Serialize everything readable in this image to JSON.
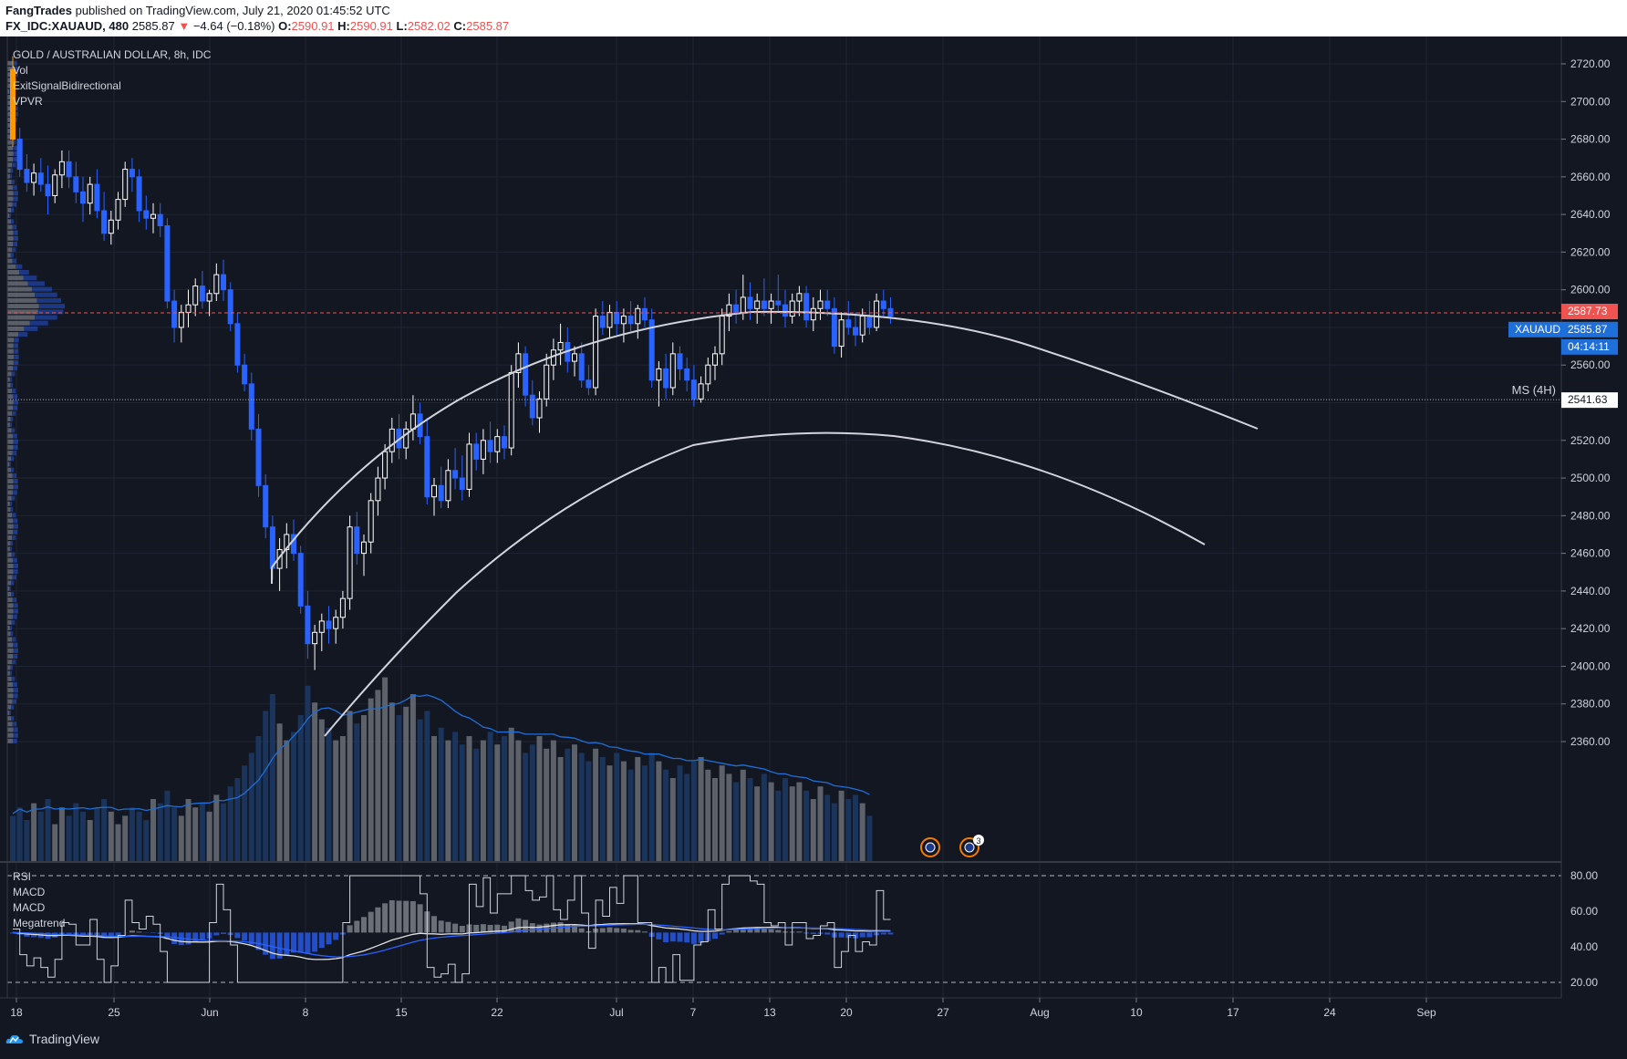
{
  "header": {
    "author": "FangTrades",
    "published": "published on TradingView.com, July 21, 2020 01:45:52 UTC",
    "symbol_info": "FX_IDC:XAUAUD, 480",
    "last": "2585.87",
    "change": "−4.64 (−0.18%)",
    "o_label": "O:",
    "o_val": "2590.91",
    "h_label": "H:",
    "h_val": "2590.91",
    "l_label": "L:",
    "l_val": "2582.02",
    "c_label": "C:",
    "c_val": "2585.87"
  },
  "legend": {
    "title": "GOLD / AUSTRALIAN DOLLAR, 8h, IDC",
    "items": [
      "Vol",
      "ExitSignalBidirectional",
      "VPVR"
    ]
  },
  "osc_legend": [
    "RSI",
    "MACD",
    "MACD",
    "Megatrend"
  ],
  "markers": {
    "price_red": "2587.73",
    "symbol_tag": "XAUAUD",
    "price_blue": "2585.87",
    "countdown": "04:14:11",
    "ms_label": "MS (4H)",
    "ms_price": "2541.63"
  },
  "event_badge_count": "3",
  "footer": {
    "brand": "TradingView"
  },
  "colors": {
    "background": "#131722",
    "up": "#ffffff",
    "down": "#2962ff",
    "price_red": "#ef5350",
    "price_blue": "#1e6fd9",
    "arc": "#d1d4dc"
  },
  "chart_data": {
    "type": "candlestick",
    "title": "GOLD / AUSTRALIAN DOLLAR, 8h, IDC",
    "ylim": [
      2350,
      2730
    ],
    "y_ticks": [
      2360,
      2380,
      2400,
      2420,
      2440,
      2460,
      2480,
      2500,
      2520,
      2540,
      2560,
      2580,
      2600,
      2620,
      2640,
      2660,
      2680,
      2700,
      2720
    ],
    "x_ticks": [
      "18",
      "25",
      "Jun",
      "8",
      "15",
      "22",
      "Jul",
      "7",
      "13",
      "20",
      "27",
      "Aug",
      "10",
      "17",
      "24",
      "Sep"
    ],
    "osc_ticks": [
      20,
      40,
      60,
      80
    ],
    "candles": [
      [
        2717,
        2724,
        2676,
        2680
      ],
      [
        2680,
        2686,
        2660,
        2664
      ],
      [
        2664,
        2672,
        2652,
        2657
      ],
      [
        2657,
        2667,
        2650,
        2662
      ],
      [
        2662,
        2670,
        2652,
        2656
      ],
      [
        2656,
        2666,
        2640,
        2650
      ],
      [
        2650,
        2664,
        2646,
        2661
      ],
      [
        2661,
        2674,
        2654,
        2668
      ],
      [
        2668,
        2674,
        2654,
        2660
      ],
      [
        2660,
        2668,
        2646,
        2652
      ],
      [
        2652,
        2660,
        2636,
        2646
      ],
      [
        2646,
        2660,
        2640,
        2656
      ],
      [
        2656,
        2664,
        2638,
        2642
      ],
      [
        2642,
        2652,
        2626,
        2630
      ],
      [
        2630,
        2642,
        2624,
        2637
      ],
      [
        2637,
        2652,
        2632,
        2648
      ],
      [
        2648,
        2668,
        2644,
        2664
      ],
      [
        2664,
        2670,
        2652,
        2660
      ],
      [
        2660,
        2664,
        2636,
        2642
      ],
      [
        2642,
        2650,
        2632,
        2638
      ],
      [
        2638,
        2646,
        2630,
        2640
      ],
      [
        2640,
        2646,
        2628,
        2634
      ],
      [
        2634,
        2638,
        2590,
        2594
      ],
      [
        2594,
        2600,
        2572,
        2580
      ],
      [
        2580,
        2592,
        2572,
        2588
      ],
      [
        2588,
        2600,
        2580,
        2592
      ],
      [
        2592,
        2606,
        2586,
        2602
      ],
      [
        2602,
        2610,
        2590,
        2594
      ],
      [
        2594,
        2600,
        2586,
        2598
      ],
      [
        2598,
        2614,
        2594,
        2608
      ],
      [
        2608,
        2616,
        2594,
        2600
      ],
      [
        2600,
        2604,
        2578,
        2582
      ],
      [
        2582,
        2588,
        2556,
        2560
      ],
      [
        2560,
        2566,
        2546,
        2550
      ],
      [
        2550,
        2556,
        2520,
        2526
      ],
      [
        2526,
        2534,
        2490,
        2496
      ],
      [
        2496,
        2502,
        2468,
        2474
      ],
      [
        2474,
        2480,
        2446,
        2452
      ],
      [
        2452,
        2468,
        2440,
        2462
      ],
      [
        2462,
        2476,
        2452,
        2470
      ],
      [
        2470,
        2478,
        2456,
        2460
      ],
      [
        2460,
        2464,
        2428,
        2432
      ],
      [
        2432,
        2440,
        2404,
        2412
      ],
      [
        2412,
        2422,
        2398,
        2418
      ],
      [
        2418,
        2428,
        2408,
        2424
      ],
      [
        2424,
        2432,
        2412,
        2420
      ],
      [
        2420,
        2430,
        2412,
        2426
      ],
      [
        2426,
        2440,
        2420,
        2436
      ],
      [
        2436,
        2480,
        2430,
        2474
      ],
      [
        2474,
        2482,
        2454,
        2460
      ],
      [
        2460,
        2470,
        2448,
        2466
      ],
      [
        2466,
        2492,
        2460,
        2488
      ],
      [
        2488,
        2506,
        2480,
        2500
      ],
      [
        2500,
        2518,
        2494,
        2514
      ],
      [
        2514,
        2532,
        2508,
        2526
      ],
      [
        2526,
        2534,
        2510,
        2516
      ],
      [
        2516,
        2530,
        2510,
        2526
      ],
      [
        2526,
        2544,
        2520,
        2534
      ],
      [
        2534,
        2540,
        2518,
        2522
      ],
      [
        2522,
        2532,
        2486,
        2490
      ],
      [
        2490,
        2500,
        2480,
        2496
      ],
      [
        2496,
        2506,
        2484,
        2488
      ],
      [
        2488,
        2510,
        2484,
        2504
      ],
      [
        2504,
        2516,
        2494,
        2500
      ],
      [
        2500,
        2512,
        2488,
        2494
      ],
      [
        2494,
        2524,
        2490,
        2518
      ],
      [
        2518,
        2524,
        2504,
        2510
      ],
      [
        2510,
        2526,
        2502,
        2520
      ],
      [
        2520,
        2530,
        2508,
        2514
      ],
      [
        2514,
        2526,
        2508,
        2522
      ],
      [
        2522,
        2528,
        2510,
        2516
      ],
      [
        2516,
        2560,
        2512,
        2556
      ],
      [
        2556,
        2572,
        2548,
        2566
      ],
      [
        2566,
        2570,
        2538,
        2544
      ],
      [
        2544,
        2552,
        2528,
        2532
      ],
      [
        2532,
        2546,
        2524,
        2542
      ],
      [
        2542,
        2566,
        2538,
        2560
      ],
      [
        2560,
        2574,
        2552,
        2568
      ],
      [
        2568,
        2582,
        2560,
        2572
      ],
      [
        2572,
        2580,
        2556,
        2562
      ],
      [
        2562,
        2570,
        2554,
        2566
      ],
      [
        2566,
        2572,
        2548,
        2552
      ],
      [
        2552,
        2560,
        2544,
        2548
      ],
      [
        2548,
        2590,
        2544,
        2586
      ],
      [
        2586,
        2594,
        2576,
        2580
      ],
      [
        2580,
        2592,
        2574,
        2588
      ],
      [
        2588,
        2594,
        2576,
        2582
      ],
      [
        2582,
        2590,
        2572,
        2586
      ],
      [
        2586,
        2594,
        2578,
        2582
      ],
      [
        2582,
        2592,
        2574,
        2590
      ],
      [
        2590,
        2596,
        2580,
        2584
      ],
      [
        2584,
        2590,
        2548,
        2552
      ],
      [
        2552,
        2562,
        2538,
        2558
      ],
      [
        2558,
        2566,
        2542,
        2548
      ],
      [
        2548,
        2572,
        2544,
        2566
      ],
      [
        2566,
        2570,
        2552,
        2558
      ],
      [
        2558,
        2564,
        2546,
        2552
      ],
      [
        2552,
        2560,
        2538,
        2542
      ],
      [
        2542,
        2554,
        2540,
        2550
      ],
      [
        2550,
        2564,
        2546,
        2560
      ],
      [
        2560,
        2570,
        2552,
        2566
      ],
      [
        2566,
        2590,
        2560,
        2586
      ],
      [
        2586,
        2598,
        2578,
        2592
      ],
      [
        2592,
        2600,
        2582,
        2588
      ],
      [
        2588,
        2608,
        2584,
        2596
      ],
      [
        2596,
        2604,
        2584,
        2590
      ],
      [
        2590,
        2598,
        2582,
        2594
      ],
      [
        2594,
        2606,
        2586,
        2590
      ],
      [
        2590,
        2598,
        2582,
        2594
      ],
      [
        2594,
        2608,
        2588,
        2592
      ],
      [
        2592,
        2600,
        2580,
        2586
      ],
      [
        2586,
        2598,
        2582,
        2594
      ],
      [
        2594,
        2602,
        2586,
        2598
      ],
      [
        2598,
        2602,
        2580,
        2584
      ],
      [
        2584,
        2596,
        2578,
        2590
      ],
      [
        2590,
        2600,
        2584,
        2594
      ],
      [
        2594,
        2600,
        2586,
        2590
      ],
      [
        2590,
        2596,
        2566,
        2570
      ],
      [
        2570,
        2588,
        2564,
        2584
      ],
      [
        2584,
        2594,
        2576,
        2580
      ],
      [
        2580,
        2588,
        2570,
        2576
      ],
      [
        2576,
        2590,
        2572,
        2586
      ],
      [
        2586,
        2594,
        2576,
        2580
      ],
      [
        2580,
        2598,
        2578,
        2594
      ],
      [
        2594,
        2600,
        2586,
        2590
      ],
      [
        2590,
        2596,
        2582,
        2586
      ]
    ],
    "volume": [
      22,
      26,
      20,
      28,
      24,
      30,
      18,
      26,
      22,
      28,
      24,
      20,
      26,
      30,
      24,
      18,
      22,
      26,
      24,
      20,
      30,
      28,
      34,
      26,
      22,
      30,
      26,
      28,
      24,
      32,
      28,
      36,
      40,
      46,
      52,
      60,
      72,
      80,
      66,
      58,
      62,
      70,
      84,
      76,
      68,
      64,
      58,
      60,
      72,
      66,
      70,
      78,
      82,
      88,
      76,
      70,
      74,
      80,
      68,
      72,
      60,
      64,
      58,
      62,
      56,
      60,
      54,
      58,
      62,
      56,
      60,
      64,
      58,
      52,
      56,
      60,
      54,
      58,
      50,
      54,
      56,
      52,
      48,
      54,
      50,
      46,
      52,
      48,
      44,
      50,
      46,
      52,
      48,
      44,
      40,
      46,
      42,
      48,
      50,
      44,
      40,
      46,
      42,
      38,
      44,
      40,
      36,
      42,
      38,
      34,
      40,
      36,
      38,
      34,
      30,
      36,
      32,
      28,
      34,
      30,
      32,
      28,
      22
    ],
    "ms_level": 2541.63,
    "last_price": 2585.87
  }
}
